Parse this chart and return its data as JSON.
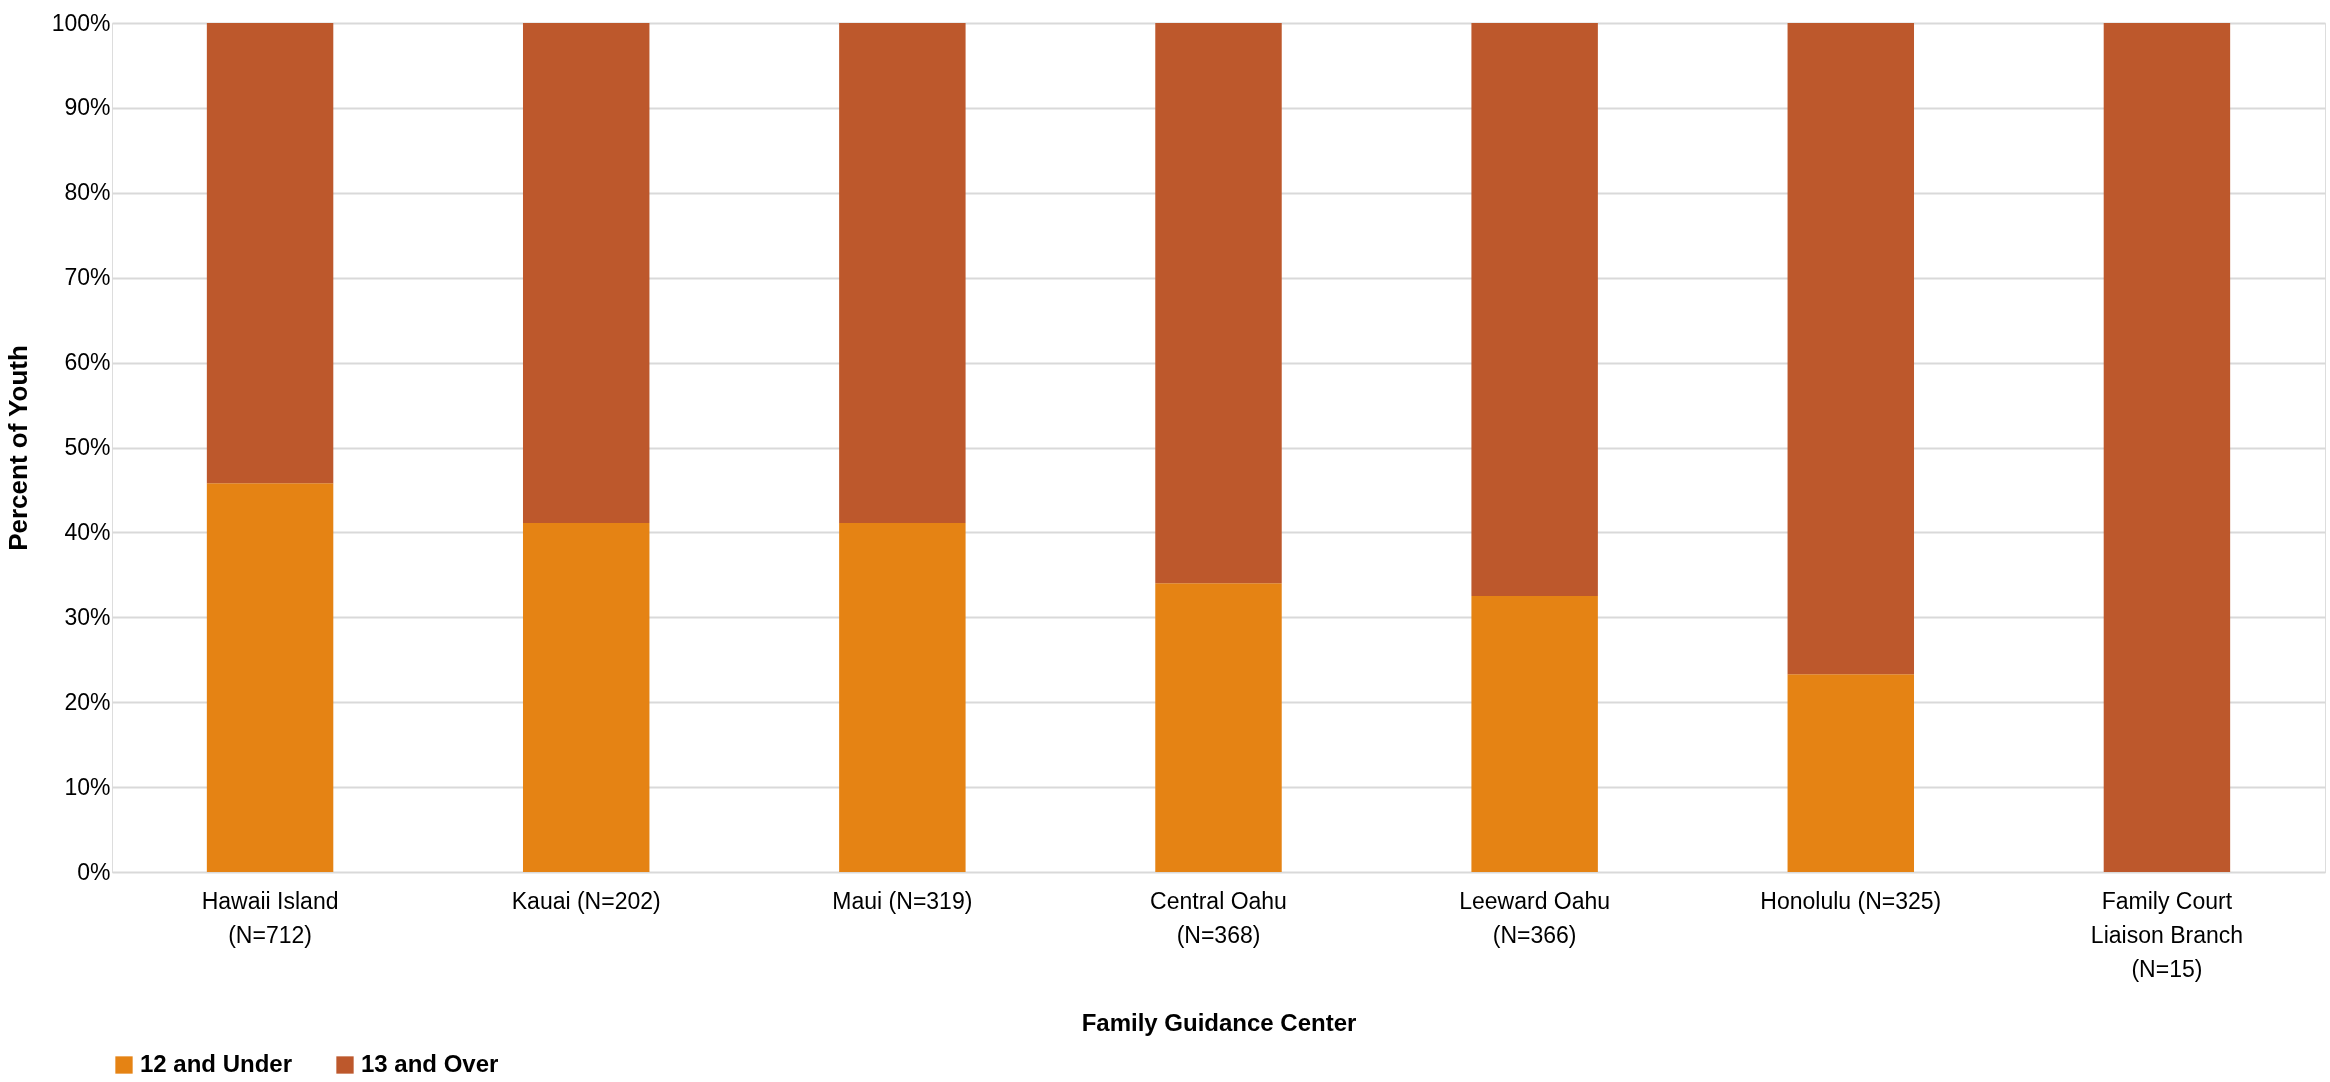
{
  "chart_data": {
    "type": "bar",
    "stacked": true,
    "xlabel": "Family Guidance Center",
    "ylabel": "Percent of Youth",
    "categories": [
      "Hawaii Island\n(N=712)",
      "Kauai (N=202)",
      "Maui (N=319)",
      "Central Oahu\n(N=368)",
      "Leeward Oahu\n(N=366)",
      "Honolulu (N=325)",
      "Family Court\nLiaison Branch\n(N=15)"
    ],
    "series": [
      {
        "name": "12 and Under",
        "color": "#e58314",
        "values": [
          45.8,
          41.1,
          41.1,
          34.0,
          32.5,
          23.3,
          0
        ]
      },
      {
        "name": "13 and Over",
        "color": "#bd582c",
        "values": [
          54.2,
          58.9,
          58.9,
          66.0,
          67.5,
          76.7,
          100
        ]
      }
    ],
    "ylim": [
      0,
      100
    ],
    "yticks": [
      {
        "value": 0,
        "label": "0%"
      },
      {
        "value": 10,
        "label": "10%"
      },
      {
        "value": 20,
        "label": "20%"
      },
      {
        "value": 30,
        "label": "30%"
      },
      {
        "value": 40,
        "label": "40%"
      },
      {
        "value": 50,
        "label": "50%"
      },
      {
        "value": 60,
        "label": "60%"
      },
      {
        "value": 70,
        "label": "70%"
      },
      {
        "value": 80,
        "label": "80%"
      },
      {
        "value": 90,
        "label": "90%"
      },
      {
        "value": 100,
        "label": "100%"
      }
    ],
    "grid": "y",
    "legend": "bottom"
  }
}
